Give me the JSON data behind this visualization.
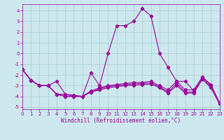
{
  "title": "",
  "xlabel": "Windchill (Refroidissement éolien,°C)",
  "background_color": "#cce8ee",
  "grid_color": "#aacccc",
  "line_color": "#990099",
  "xlim": [
    0,
    23
  ],
  "ylim": [
    -5.2,
    4.6
  ],
  "yticks": [
    -5,
    -4,
    -3,
    -2,
    -1,
    0,
    1,
    2,
    3,
    4
  ],
  "xticks": [
    0,
    1,
    2,
    3,
    4,
    5,
    6,
    7,
    8,
    9,
    10,
    11,
    12,
    13,
    14,
    15,
    16,
    17,
    18,
    19,
    20,
    21,
    22,
    23
  ],
  "y_main": [
    -1.5,
    -2.5,
    -3.0,
    -3.0,
    -2.6,
    -3.8,
    -4.0,
    -4.0,
    -1.8,
    -3.0,
    0.0,
    2.6,
    2.6,
    3.0,
    4.2,
    3.5,
    0.0,
    -1.3,
    -2.6,
    -2.6,
    -3.5,
    -2.2,
    -3.0,
    null
  ],
  "y_flat1": [
    -1.5,
    -2.5,
    -3.0,
    -3.0,
    -3.8,
    -3.8,
    -3.9,
    -4.0,
    -3.5,
    -3.2,
    -3.0,
    -2.9,
    -2.8,
    -2.7,
    -2.7,
    -2.6,
    -3.0,
    -3.4,
    -2.6,
    -3.4,
    -3.4,
    -2.2,
    -2.9,
    -4.6
  ],
  "y_flat2": [
    -1.5,
    -2.5,
    -3.0,
    -3.0,
    -3.8,
    -4.0,
    -4.0,
    -4.0,
    -3.6,
    -3.3,
    -3.1,
    -3.0,
    -2.9,
    -2.85,
    -2.8,
    -2.75,
    -3.1,
    -3.6,
    -2.8,
    -3.6,
    -3.6,
    -2.4,
    -3.1,
    -4.7
  ],
  "y_flat3": [
    -1.5,
    -2.5,
    -3.0,
    -3.0,
    -3.8,
    -4.0,
    -4.0,
    -4.0,
    -3.6,
    -3.4,
    -3.2,
    -3.1,
    -3.0,
    -2.95,
    -2.9,
    -2.85,
    -3.2,
    -3.7,
    -3.0,
    -3.7,
    -3.7,
    -2.4,
    -3.2,
    -4.7
  ],
  "xlabel_fontsize": 5.5,
  "tick_fontsize": 5.0
}
